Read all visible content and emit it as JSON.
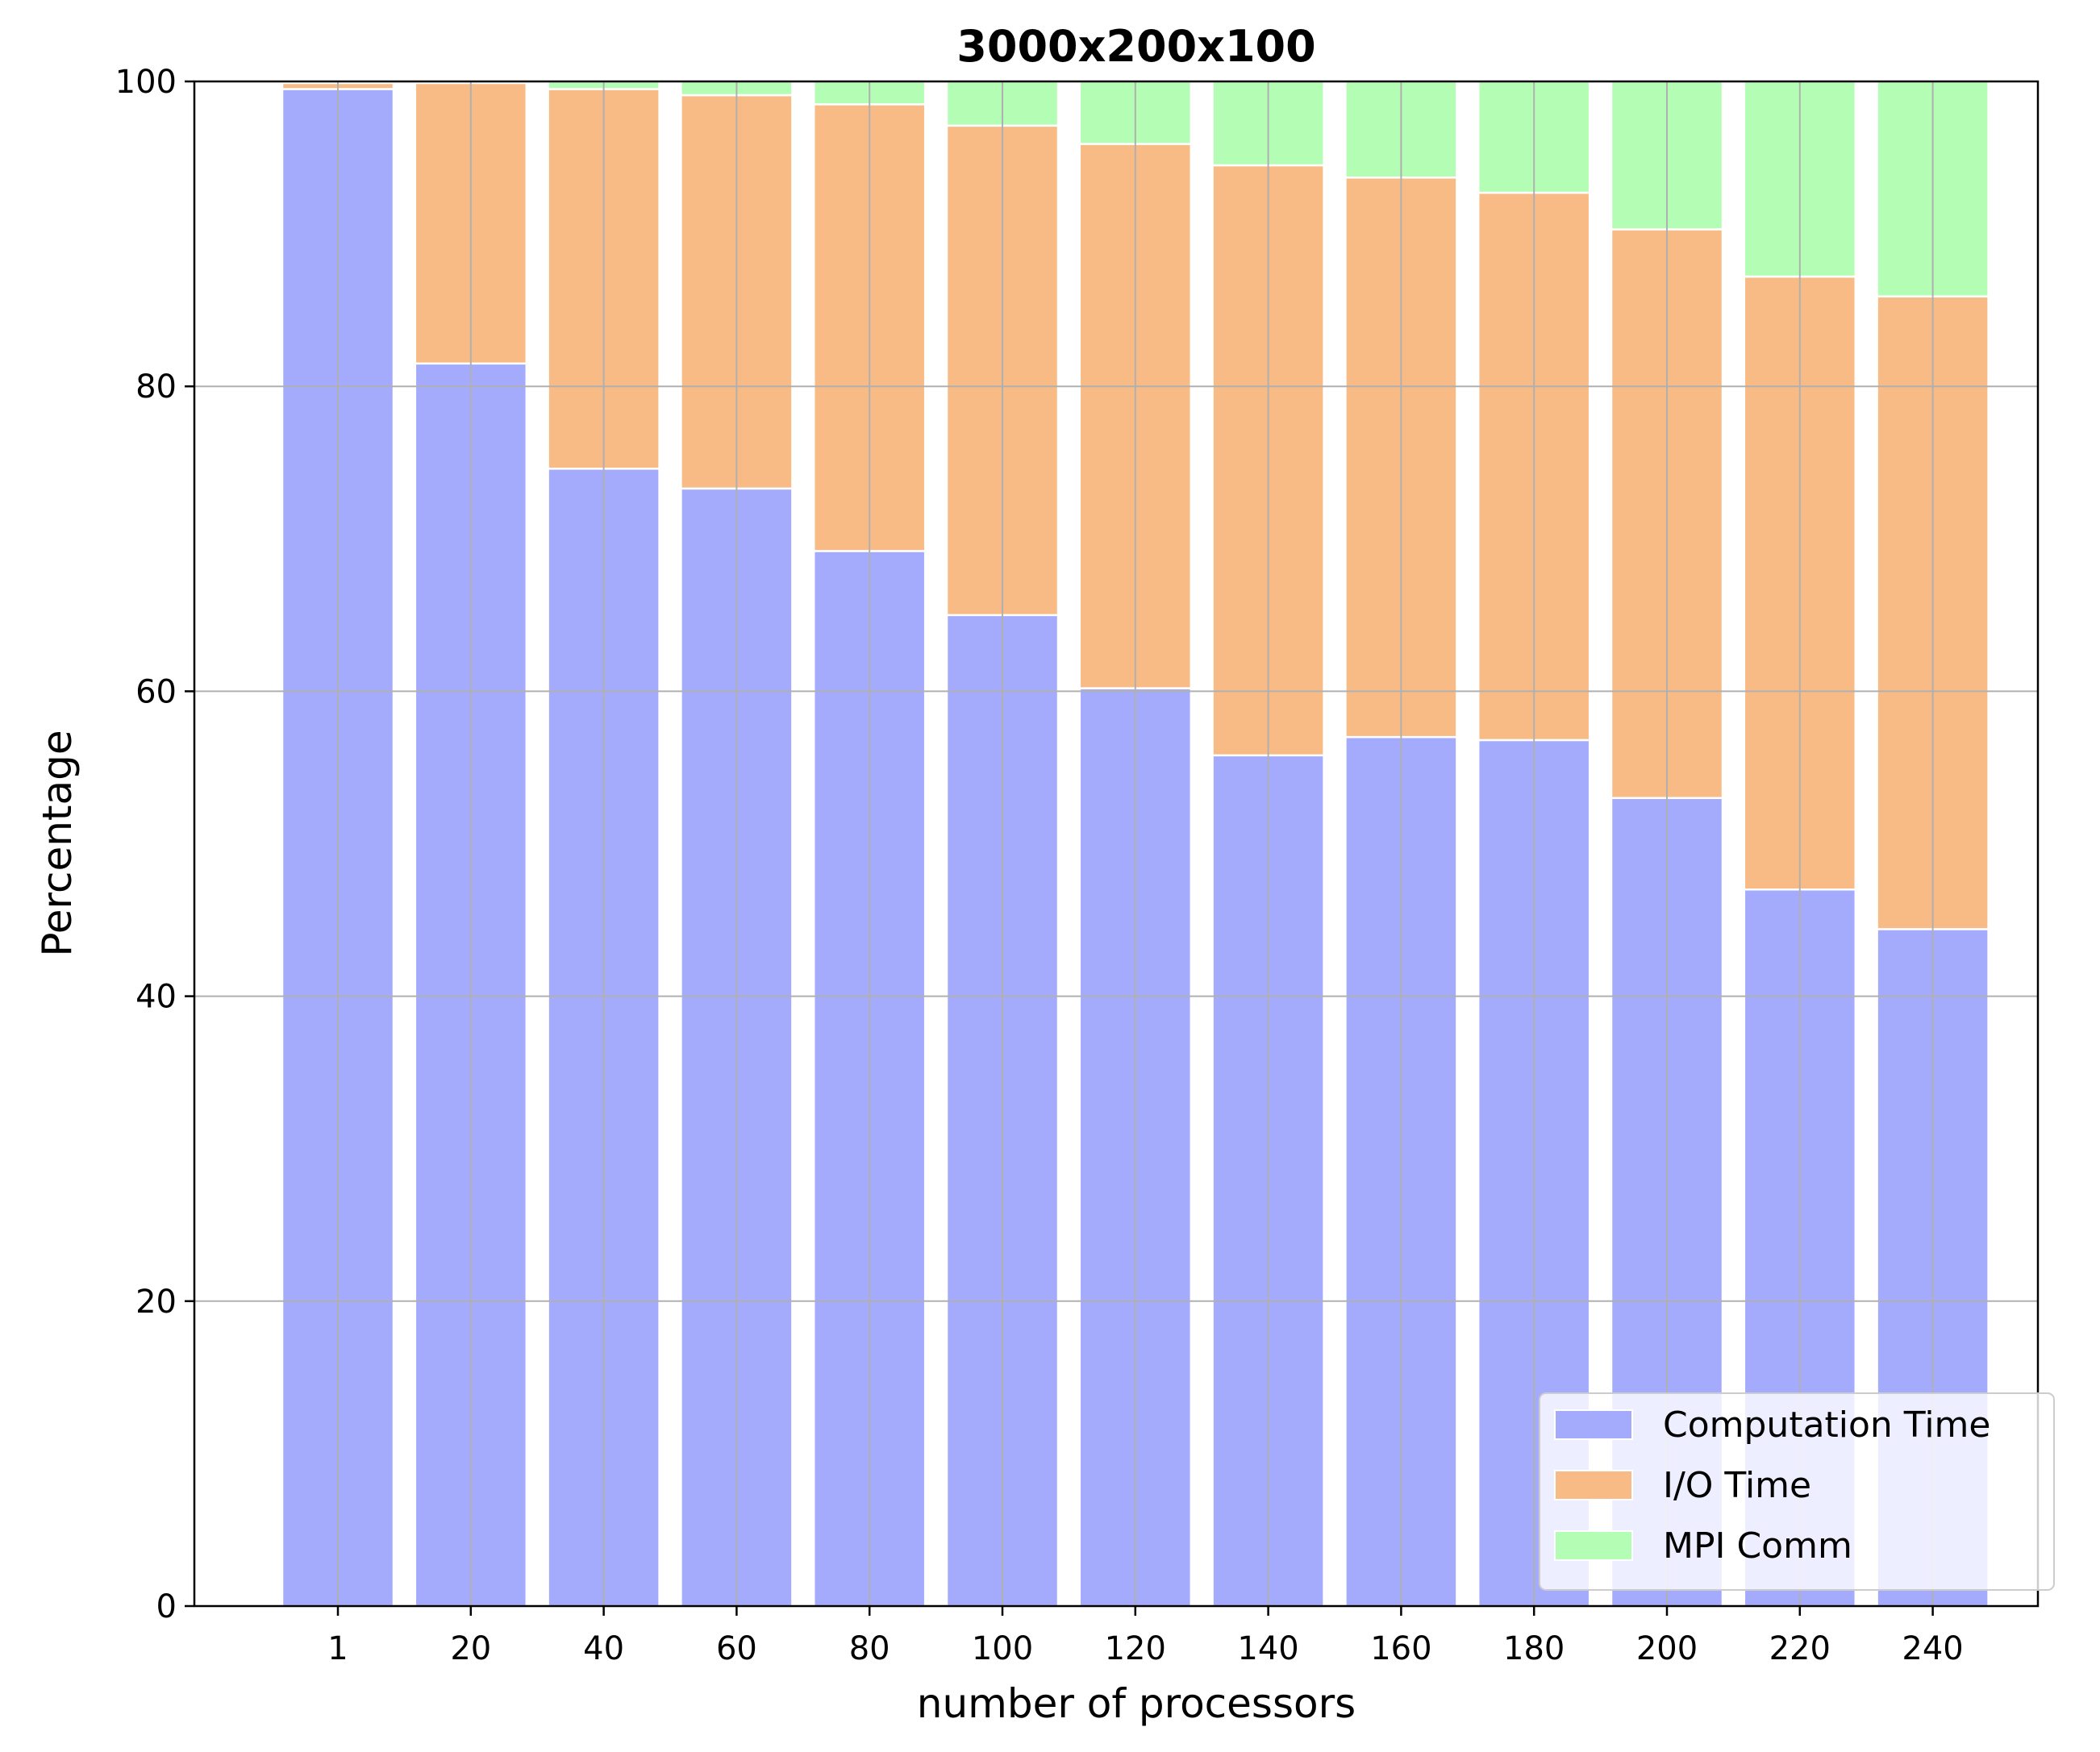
{
  "chart_data": {
    "type": "bar",
    "stacked": true,
    "title": "3000x200x100",
    "xlabel": "number of processors",
    "ylabel": "Percentage",
    "ylim": [
      0,
      100
    ],
    "yticks": [
      0,
      20,
      40,
      60,
      80,
      100
    ],
    "categories": [
      "1",
      "20",
      "40",
      "60",
      "80",
      "100",
      "120",
      "140",
      "160",
      "180",
      "200",
      "220",
      "240"
    ],
    "series": [
      {
        "name": "Computation Time",
        "color": "#a4abfd",
        "values": [
          99.5,
          81.5,
          74.6,
          73.3,
          69.2,
          65.0,
          60.2,
          55.8,
          57.0,
          56.8,
          53.0,
          47.0,
          44.4
        ]
      },
      {
        "name": "I/O Time",
        "color": "#f8bb86",
        "values": [
          0.4,
          18.4,
          24.9,
          25.8,
          29.3,
          32.1,
          35.7,
          38.7,
          36.7,
          35.9,
          37.3,
          40.2,
          41.5
        ]
      },
      {
        "name": "MPI Comm",
        "color": "#b4fdb4",
        "values": [
          0.1,
          0.1,
          0.5,
          0.9,
          1.5,
          2.9,
          4.1,
          5.5,
          6.3,
          7.3,
          9.7,
          12.8,
          14.1
        ]
      }
    ],
    "grid": true,
    "legend_position": "lower-right"
  }
}
